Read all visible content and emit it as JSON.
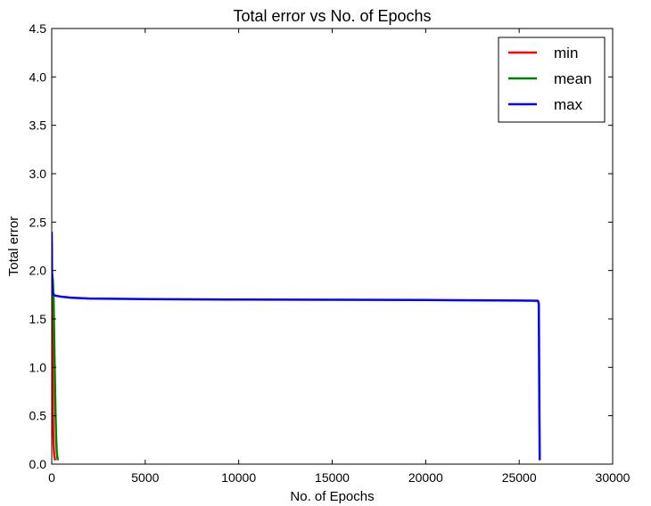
{
  "chart_data": {
    "type": "line",
    "title": "Total error vs No. of Epochs",
    "xlabel": "No. of Epochs",
    "ylabel": "Total error",
    "xlim": [
      0,
      30000
    ],
    "ylim": [
      0,
      4.5
    ],
    "xticks": [
      0,
      5000,
      10000,
      15000,
      20000,
      25000,
      30000
    ],
    "yticks": [
      0.0,
      0.5,
      1.0,
      1.5,
      2.0,
      2.5,
      3.0,
      3.5,
      4.0,
      4.5
    ],
    "xtick_labels": [
      "0",
      "5000",
      "10000",
      "15000",
      "20000",
      "25000",
      "30000"
    ],
    "ytick_labels": [
      "0.0",
      "0.5",
      "1.0",
      "1.5",
      "2.0",
      "2.5",
      "3.0",
      "3.5",
      "4.0",
      "4.5"
    ],
    "grid": false,
    "legend_position": "top-right",
    "series": [
      {
        "name": "min",
        "color": "#ff0000",
        "x": [
          0,
          10,
          25,
          40,
          60,
          80,
          100,
          130,
          160,
          200
        ],
        "y": [
          2.3,
          2.0,
          1.5,
          1.0,
          0.6,
          0.35,
          0.2,
          0.1,
          0.06,
          0.04
        ]
      },
      {
        "name": "mean",
        "color": "#008000",
        "x": [
          0,
          30,
          60,
          100,
          150,
          200,
          240,
          270,
          300,
          330
        ],
        "y": [
          2.0,
          1.95,
          1.9,
          1.7,
          1.1,
          0.55,
          0.25,
          0.12,
          0.07,
          0.04
        ]
      },
      {
        "name": "max",
        "color": "#0000ff",
        "x": [
          0,
          20,
          50,
          100,
          200,
          500,
          1000,
          2000,
          5000,
          10000,
          15000,
          20000,
          25000,
          26000,
          26050,
          26080,
          26100
        ],
        "y": [
          2.4,
          1.85,
          1.77,
          1.75,
          1.74,
          1.73,
          1.72,
          1.71,
          1.705,
          1.7,
          1.698,
          1.695,
          1.69,
          1.688,
          1.66,
          0.6,
          0.04
        ]
      }
    ]
  }
}
